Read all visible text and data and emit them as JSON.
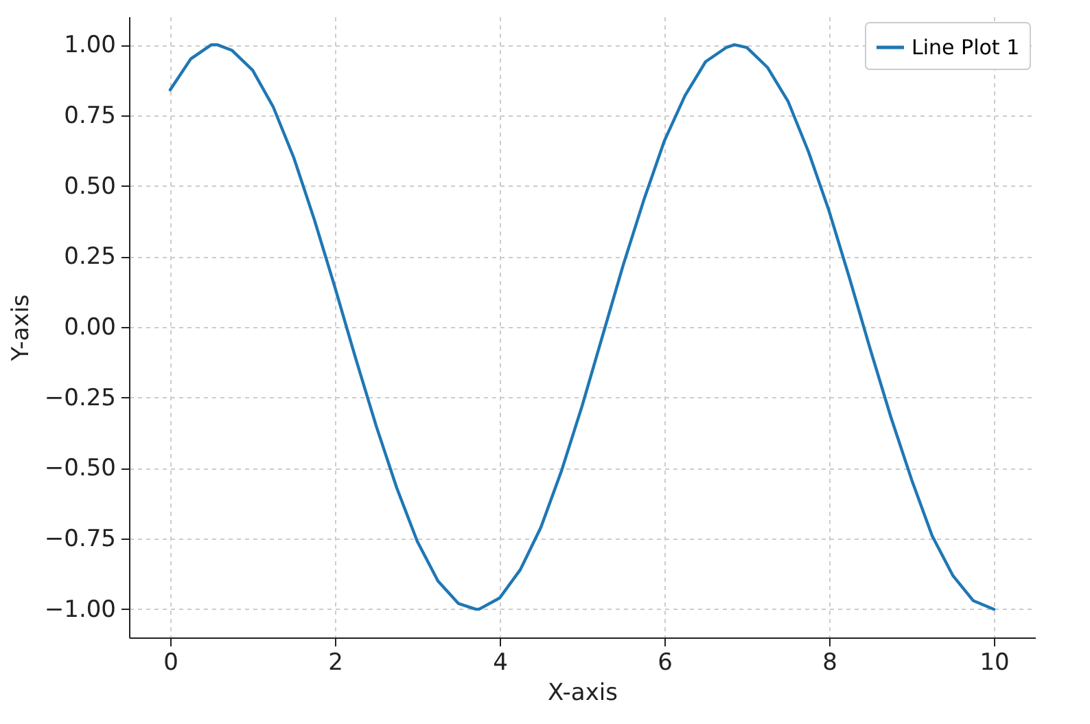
{
  "chart_data": {
    "type": "line",
    "xlabel": "X-axis",
    "ylabel": "Y-axis",
    "xlim": [
      -0.5,
      10.5
    ],
    "ylim": [
      -1.1,
      1.1
    ],
    "xticks": [
      0,
      2,
      4,
      6,
      8,
      10
    ],
    "yticks": [
      {
        "value": -1,
        "label": "−1.00"
      },
      {
        "value": -0.75,
        "label": "−0.75"
      },
      {
        "value": -0.5,
        "label": "−0.50"
      },
      {
        "value": -0.25,
        "label": "−0.25"
      },
      {
        "value": 0,
        "label": "0.00"
      },
      {
        "value": 0.25,
        "label": "0.25"
      },
      {
        "value": 0.5,
        "label": "0.50"
      },
      {
        "value": 0.75,
        "label": "0.75"
      },
      {
        "value": 1,
        "label": "1.00"
      }
    ],
    "grid": true,
    "legend": "top right",
    "line_style": "solid",
    "series": [
      {
        "name": "Line Plot 1",
        "color": "#1f77b4",
        "x": [
          0,
          0.25,
          0.5,
          0.57,
          0.75,
          1,
          1.25,
          1.5,
          1.75,
          2,
          2.25,
          2.5,
          2.75,
          3,
          3.25,
          3.5,
          3.71,
          3.75,
          4,
          4.25,
          4.5,
          4.75,
          5,
          5.25,
          5.5,
          5.75,
          6,
          6.25,
          6.5,
          6.75,
          6.85,
          7,
          7.25,
          7.5,
          7.75,
          8,
          8.25,
          8.5,
          8.75,
          9,
          9.25,
          9.5,
          9.75,
          10
        ],
        "values": [
          0.84,
          0.95,
          1.0,
          1.0,
          0.98,
          0.91,
          0.78,
          0.6,
          0.38,
          0.14,
          -0.11,
          -0.35,
          -0.57,
          -0.76,
          -0.9,
          -0.98,
          -1.0,
          -1.0,
          -0.96,
          -0.86,
          -0.71,
          -0.51,
          -0.28,
          -0.03,
          0.22,
          0.45,
          0.66,
          0.82,
          0.94,
          0.99,
          1.0,
          0.99,
          0.92,
          0.8,
          0.62,
          0.41,
          0.17,
          -0.08,
          -0.32,
          -0.54,
          -0.74,
          -0.88,
          -0.97,
          -1.0
        ]
      }
    ]
  }
}
